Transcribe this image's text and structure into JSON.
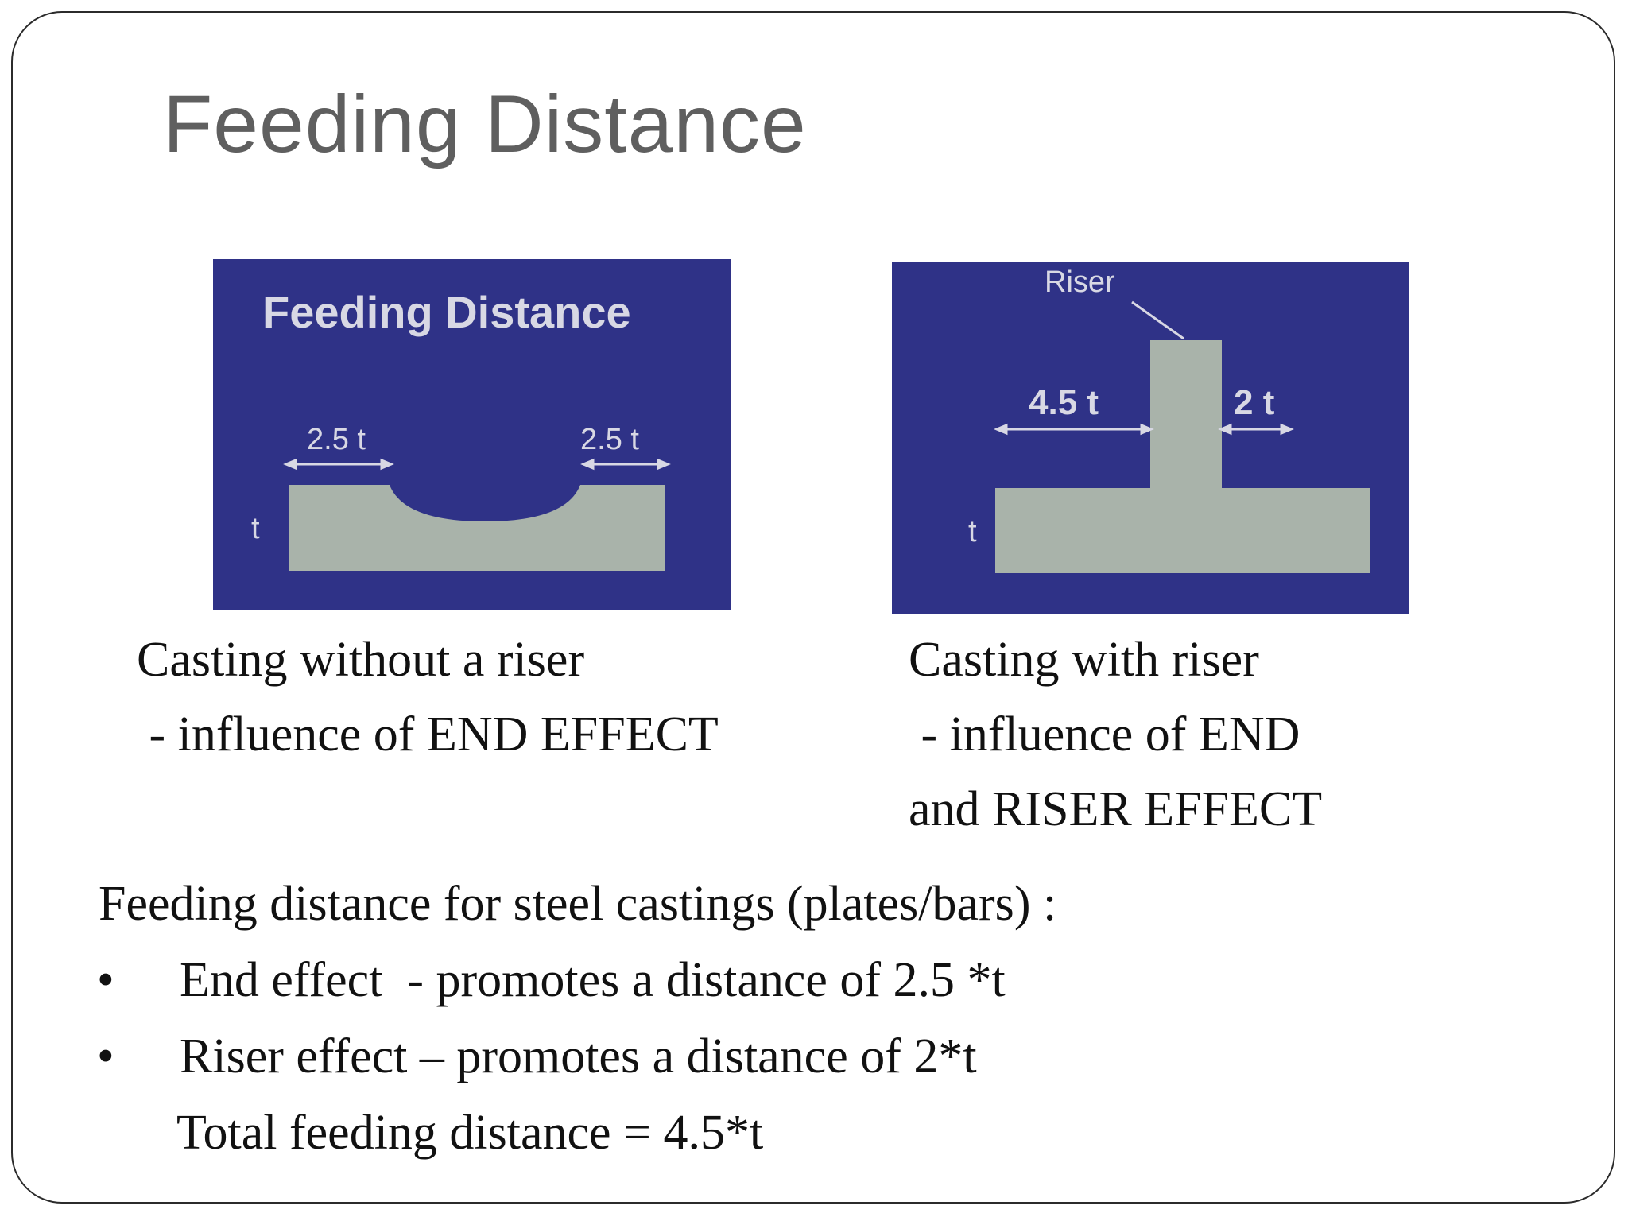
{
  "slide": {
    "title": "Feeding Distance"
  },
  "figure_left": {
    "title": "Feeding Distance",
    "label_left": "2.5 t",
    "label_right": "2.5 t",
    "label_thickness": "t"
  },
  "figure_right": {
    "label_riser": "Riser",
    "label_left": "4.5 t",
    "label_right": "2 t",
    "label_thickness": "t"
  },
  "caption_left": {
    "line1": "Casting without a riser",
    "line2": " - influence of END EFFECT"
  },
  "caption_right": {
    "line1": "Casting with riser",
    "line2": " - influence of END",
    "line3": "and RISER EFFECT"
  },
  "body": {
    "intro": "Feeding distance for steel castings (plates/bars) :",
    "bullet_symbol": "•",
    "bullets": [
      "End effect  - promotes a distance of 2.5 *t",
      "Riser effect – promotes a distance of 2*t"
    ],
    "total": "Total feeding distance = 4.5*t"
  },
  "colors": {
    "figure_background": "#2f3287",
    "casting_fill": "#a9b3aa",
    "arrow": "#d8d8e4"
  }
}
